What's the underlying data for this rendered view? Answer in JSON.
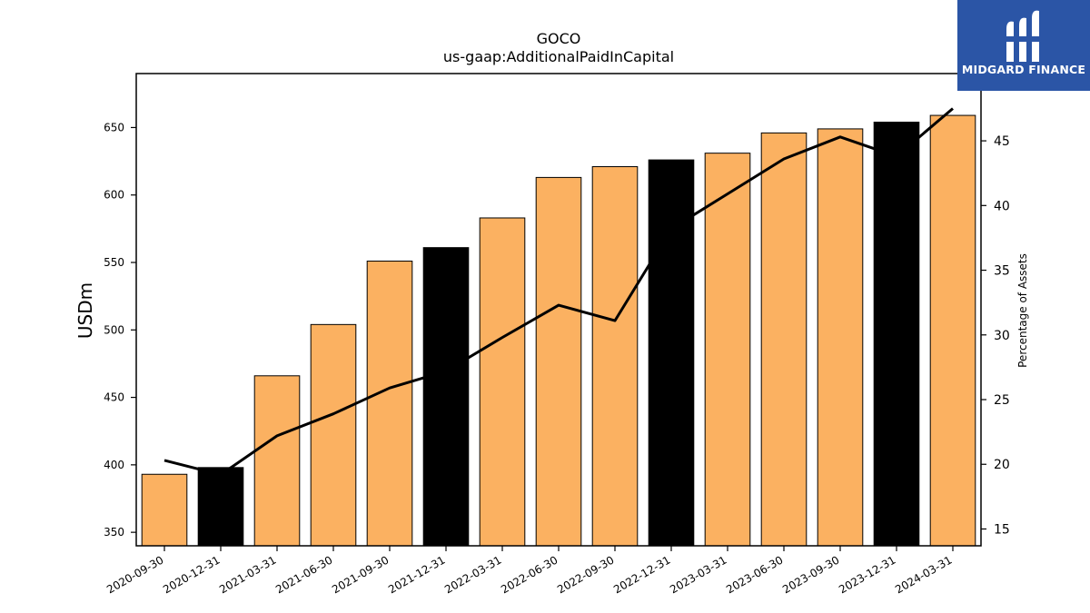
{
  "chart_data": {
    "type": "bar",
    "title": "GOCO",
    "subtitle": "us-gaap:AdditionalPaidInCapital",
    "ylabel": "USDm",
    "y2label": "Percentage of Assets",
    "categories": [
      "2020-09-30",
      "2020-12-31",
      "2021-03-31",
      "2021-06-30",
      "2021-09-30",
      "2021-12-31",
      "2022-03-31",
      "2022-06-30",
      "2022-09-30",
      "2022-12-31",
      "2023-03-31",
      "2023-06-30",
      "2023-09-30",
      "2023-12-31",
      "2024-03-31"
    ],
    "bar_values": [
      393,
      398,
      466,
      504,
      551,
      561,
      583,
      613,
      621,
      626,
      631,
      646,
      649,
      654,
      659
    ],
    "bar_colors": [
      "#fbb161",
      "#000000",
      "#fbb161",
      "#fbb161",
      "#fbb161",
      "#000000",
      "#fbb161",
      "#fbb161",
      "#fbb161",
      "#000000",
      "#fbb161",
      "#fbb161",
      "#fbb161",
      "#000000",
      "#fbb161"
    ],
    "line_values": [
      20.3,
      19.2,
      22.2,
      23.9,
      25.9,
      27.2,
      29.8,
      32.3,
      31.1,
      38.2,
      40.9,
      43.6,
      45.3,
      43.8,
      47.5
    ],
    "line_color": "#000000",
    "ylim": [
      340,
      690
    ],
    "y2lim": [
      13.7,
      50.2
    ],
    "yticks": [
      350,
      400,
      450,
      500,
      550,
      600,
      650
    ],
    "y2ticks": [
      15,
      20,
      25,
      30,
      35,
      40,
      45
    ],
    "grid": false
  },
  "logo": {
    "text": "MIDGARD FINANCE",
    "color": "#2b55a6"
  }
}
